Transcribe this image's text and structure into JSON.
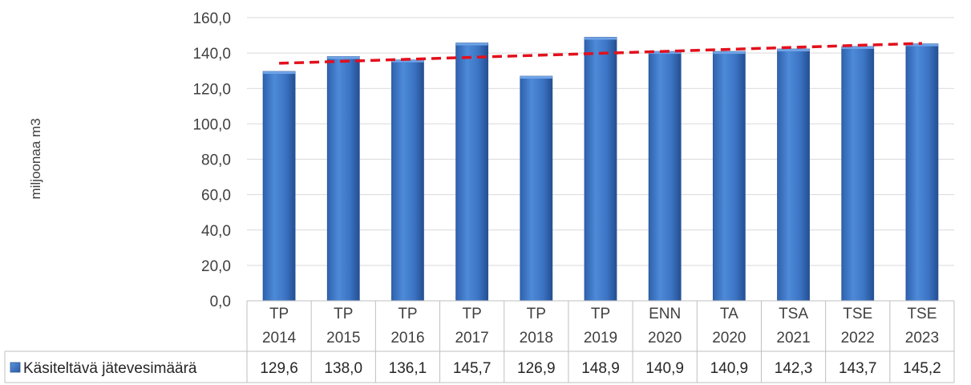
{
  "chart_data": {
    "type": "bar",
    "title": "",
    "xlabel": "",
    "ylabel": "miljoonaa m3",
    "ylim": [
      0,
      160
    ],
    "ytick_step": 20,
    "ytick_labels": [
      "0,0",
      "20,0",
      "40,0",
      "60,0",
      "80,0",
      "100,0",
      "120,0",
      "140,0",
      "160,0"
    ],
    "grid": true,
    "legend_placement": "bottom-left (data table)",
    "categories": [
      [
        "TP",
        "2014"
      ],
      [
        "TP",
        "2015"
      ],
      [
        "TP",
        "2016"
      ],
      [
        "TP",
        "2017"
      ],
      [
        "TP",
        "2018"
      ],
      [
        "TP",
        "2019"
      ],
      [
        "ENN",
        "2020"
      ],
      [
        "TA",
        "2020"
      ],
      [
        "TSA",
        "2021"
      ],
      [
        "TSE",
        "2022"
      ],
      [
        "TSE",
        "2023"
      ]
    ],
    "series": [
      {
        "name": "Käsiteltävä jätevesimäärä",
        "values": [
          129.6,
          138.0,
          136.1,
          145.7,
          126.9,
          148.9,
          140.9,
          140.9,
          142.3,
          143.7,
          145.2
        ],
        "value_labels": [
          "129,6",
          "138,0",
          "136,1",
          "145,7",
          "126,9",
          "148,9",
          "140,9",
          "140,9",
          "142,3",
          "143,7",
          "145,2"
        ],
        "color": "#3f78c8"
      }
    ],
    "trendline": {
      "type": "linear",
      "color": "#e3101c",
      "style": "dashed"
    }
  }
}
